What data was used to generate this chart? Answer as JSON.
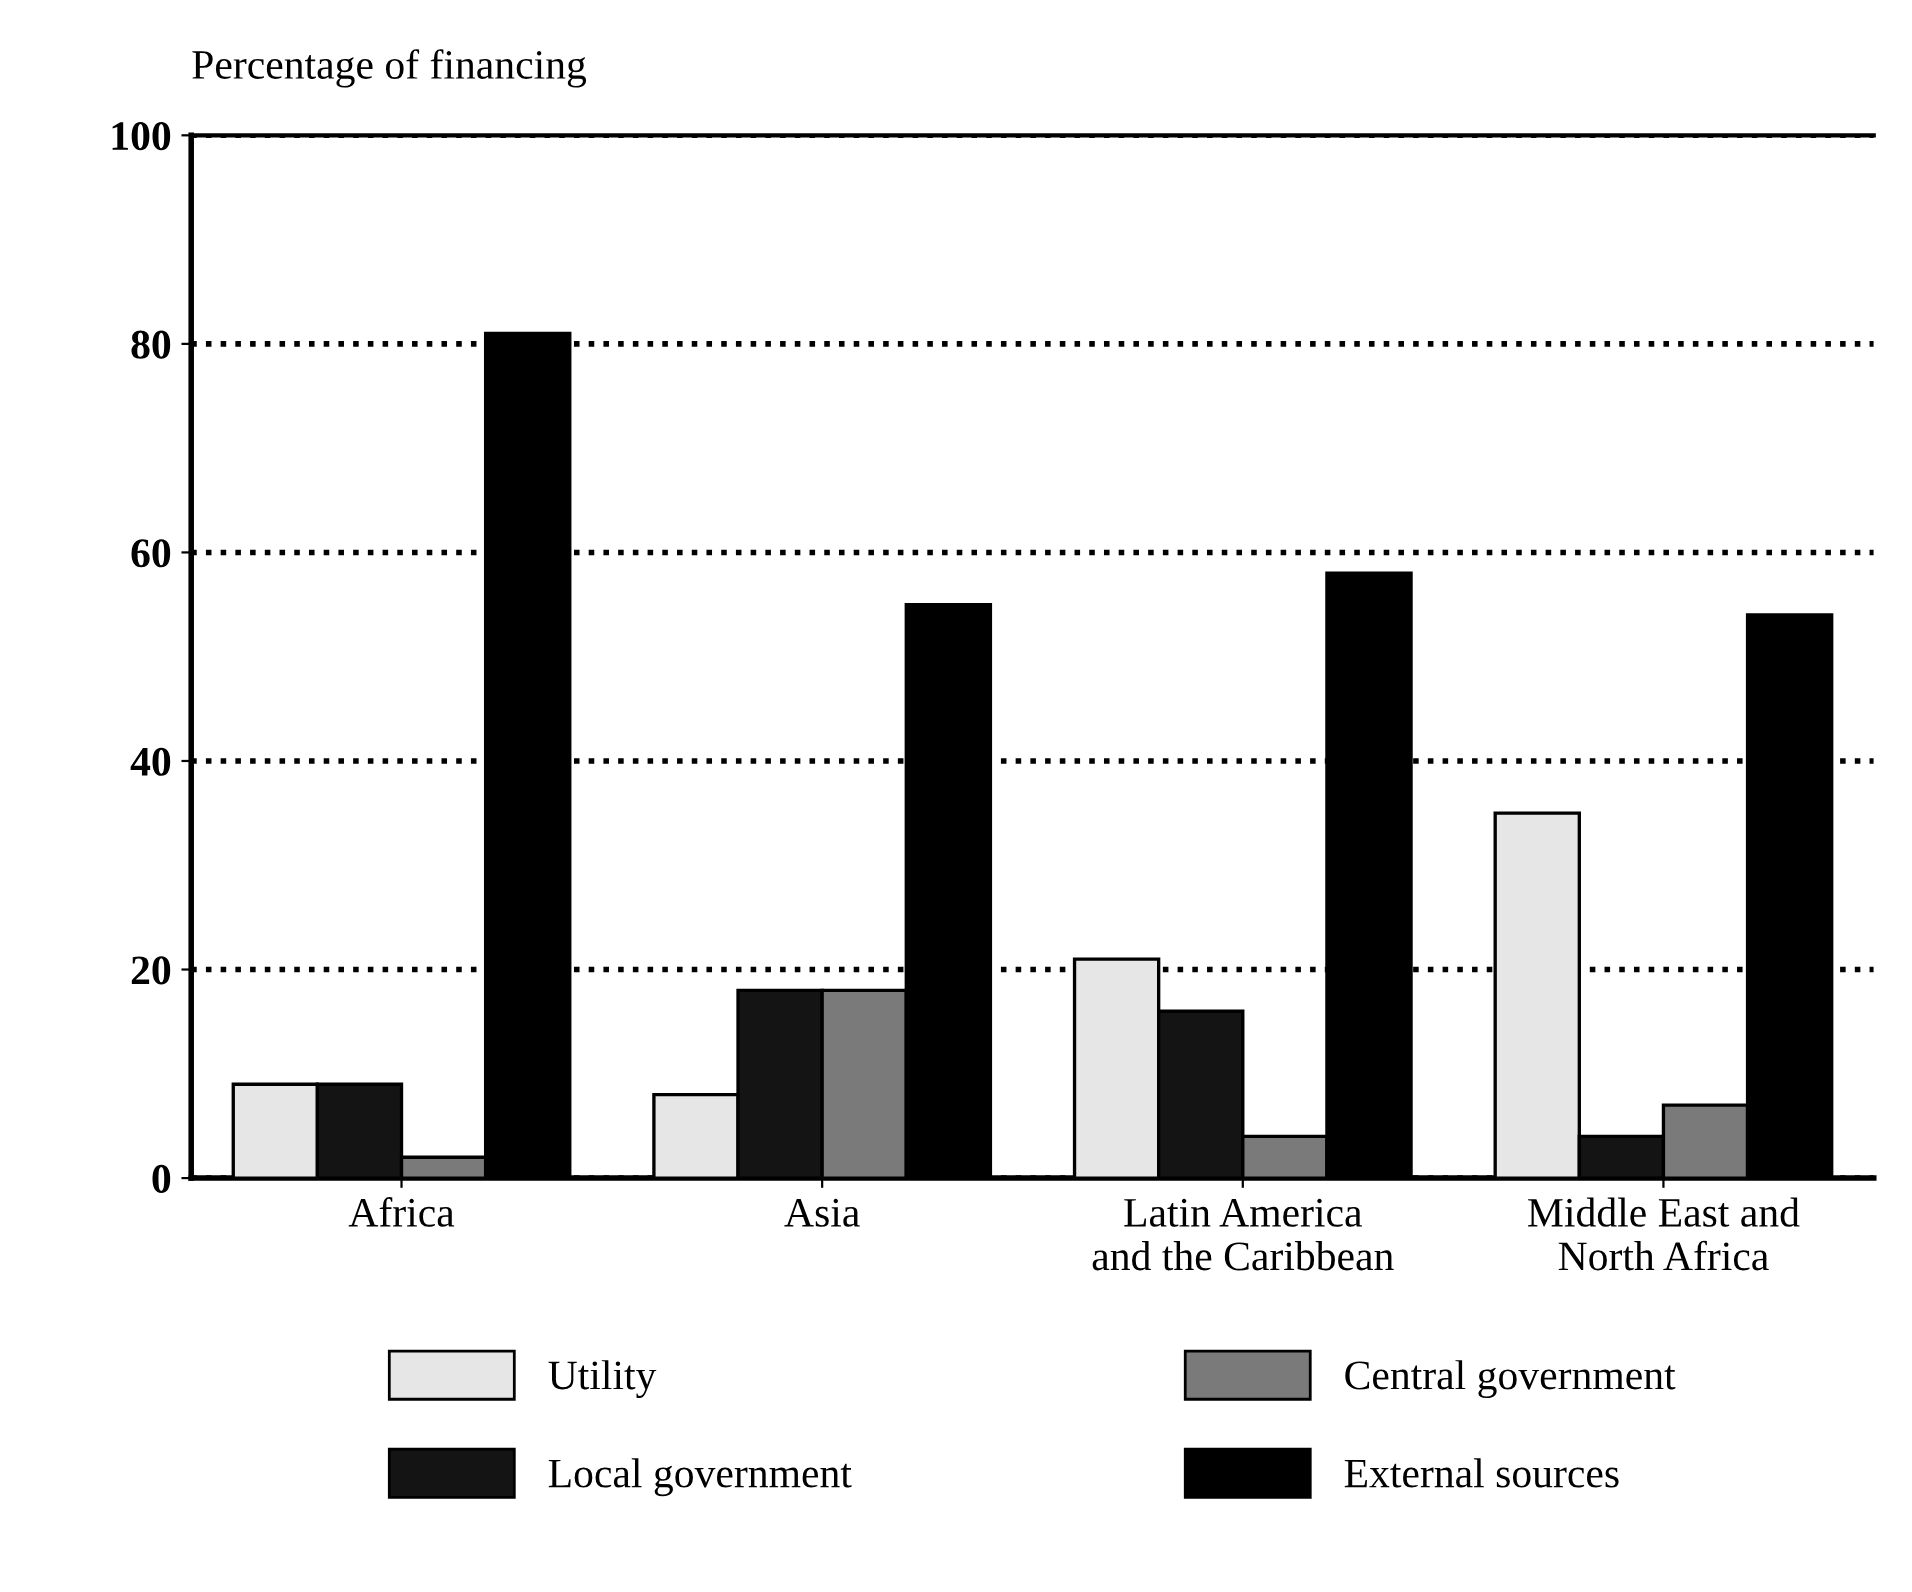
{
  "chart_data": {
    "type": "bar",
    "ylabel": "Percentage of financing",
    "categories": [
      "Africa",
      "Asia",
      "Latin America\nand the Caribbean",
      "Middle East and\nNorth Africa"
    ],
    "series": [
      {
        "name": "Utility",
        "color": "#e6e6e6",
        "values": [
          9,
          8,
          21,
          35
        ]
      },
      {
        "name": "Local government",
        "color": "#141414",
        "values": [
          9,
          18,
          16,
          4
        ]
      },
      {
        "name": "Central government",
        "color": "#7a7a7a",
        "values": [
          2,
          18,
          4,
          7
        ]
      },
      {
        "name": "External sources",
        "color": "#000000",
        "values": [
          81,
          55,
          58,
          54
        ]
      }
    ],
    "ylim": [
      0,
      100
    ],
    "yticks": [
      0,
      20,
      40,
      60,
      80,
      100
    ],
    "grid": "y",
    "line_style": "dotted",
    "legend": "bottom"
  }
}
